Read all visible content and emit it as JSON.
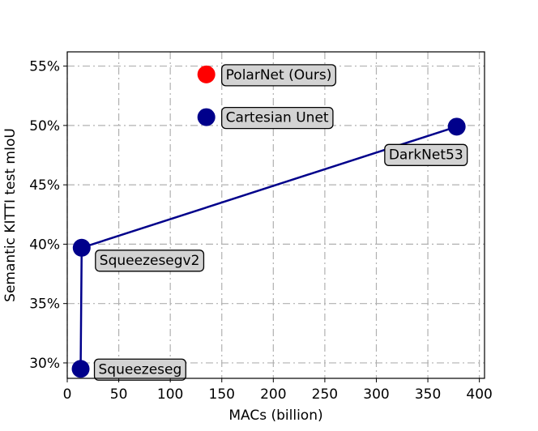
{
  "chart_data": {
    "type": "scatter",
    "title": "",
    "xlabel": "MACs (billion)",
    "ylabel": "Semantic KITTI test mIoU",
    "xlim": [
      0,
      405
    ],
    "ylim": [
      28.7,
      56.2
    ],
    "grid": true,
    "x_ticks": [
      0,
      50,
      100,
      150,
      200,
      250,
      300,
      350,
      400
    ],
    "x_tick_labels": [
      "0",
      "50",
      "100",
      "150",
      "200",
      "250",
      "300",
      "350",
      "400"
    ],
    "y_ticks": [
      30,
      35,
      40,
      45,
      50,
      55
    ],
    "y_tick_labels": [
      "30%",
      "35%",
      "40%",
      "45%",
      "50%",
      "55%"
    ],
    "colors": {
      "baseline": "#00008b",
      "ours": "#ff0000",
      "annotation_box": "#d3d3d3"
    },
    "points": [
      {
        "label": "Squeezeseg",
        "x": 13,
        "y": 29.5,
        "color": "#00008b"
      },
      {
        "label": "Squeezesegv2",
        "x": 14,
        "y": 39.7,
        "color": "#00008b"
      },
      {
        "label": "DarkNet53",
        "x": 378,
        "y": 49.9,
        "color": "#00008b"
      },
      {
        "label": "Cartesian Unet",
        "x": 135,
        "y": 50.7,
        "color": "#00008b"
      },
      {
        "label": "PolarNet (Ours)",
        "x": 135,
        "y": 54.3,
        "color": "#ff0000"
      }
    ],
    "line_series": {
      "x": [
        13,
        14,
        378
      ],
      "y": [
        29.5,
        39.7,
        49.9
      ],
      "color": "#00008b"
    }
  }
}
